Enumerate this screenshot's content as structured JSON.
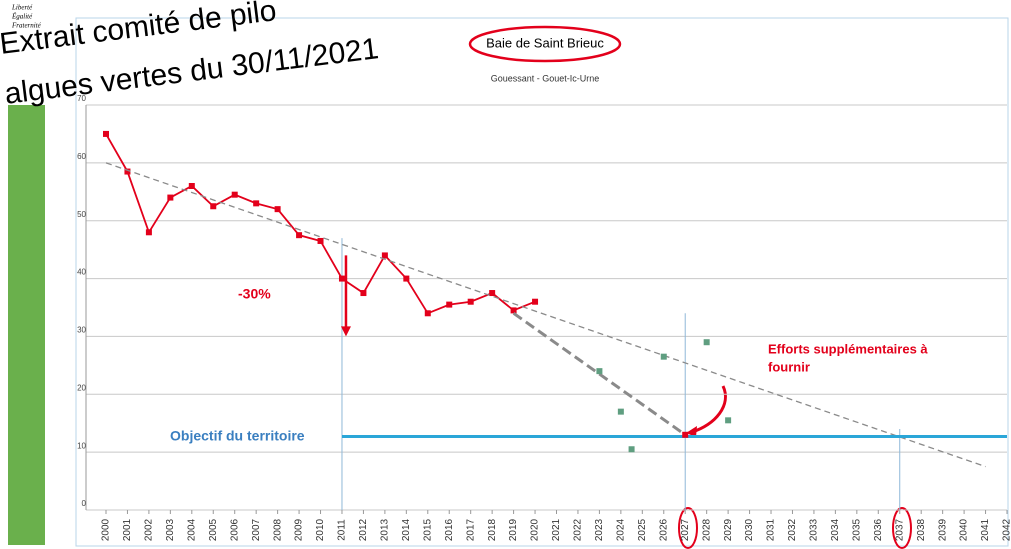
{
  "header": {
    "logo": [
      "Liberté",
      "Égalité",
      "Fraternité"
    ],
    "lines": [
      "Extrait comité de pilo",
      "algues vertes du 30/11/2021"
    ]
  },
  "chart_data": {
    "type": "line",
    "title": "Baie de Saint Brieuc",
    "subtitle": "Gouessant - Gouet-Ic-Urne",
    "xlim": [
      2000,
      2042
    ],
    "xticks": [
      2000,
      2001,
      2002,
      2003,
      2004,
      2005,
      2006,
      2007,
      2008,
      2009,
      2010,
      2011,
      2012,
      2013,
      2014,
      2015,
      2016,
      2017,
      2018,
      2019,
      2020,
      2021,
      2022,
      2023,
      2024,
      2025,
      2026,
      2027,
      2028,
      2029,
      2030,
      2031,
      2032,
      2033,
      2034,
      2035,
      2036,
      2037,
      2038,
      2039,
      2040,
      2041,
      2042
    ],
    "ylim": [
      0,
      70
    ],
    "yticks": [
      0,
      10,
      20,
      30,
      40,
      50,
      60,
      70
    ],
    "grid": true,
    "series": [
      {
        "style": "line-markers",
        "color": "#e3001b",
        "x": [
          2000,
          2001,
          2002,
          2003,
          2004,
          2005,
          2006,
          2007,
          2008,
          2009,
          2010,
          2011,
          2012,
          2013,
          2014,
          2015,
          2016,
          2017,
          2018,
          2019,
          2020
        ],
        "values": [
          65,
          58.5,
          48,
          54,
          56,
          52.5,
          54.5,
          53,
          52,
          47.5,
          46.5,
          40,
          37.5,
          44,
          40,
          34,
          35.5,
          36,
          37.5,
          34.5,
          36
        ]
      },
      {
        "style": "dashed",
        "color": "#8a8a8a",
        "x": [
          2000,
          2041
        ],
        "values": [
          60,
          7.5
        ]
      },
      {
        "style": "dashed-thick",
        "color": "#8a8a8a",
        "x": [
          2019,
          2027
        ],
        "values": [
          34,
          13
        ]
      },
      {
        "style": "scatter",
        "color": "#5f9e80",
        "x": [
          2023,
          2024,
          2024.5,
          2026,
          2028,
          2029
        ],
        "values": [
          24,
          17,
          10.5,
          26.5,
          29,
          15.5
        ]
      },
      {
        "style": "line",
        "color": "#2aa6d8",
        "x": [
          2011,
          2042
        ],
        "values": [
          12.7,
          12.7
        ]
      },
      {
        "style": "scatter",
        "color": "#e3001b",
        "x": [
          2027
        ],
        "values": [
          13
        ]
      }
    ],
    "reference_lines": [
      {
        "x": 2011,
        "top": 47
      },
      {
        "x": 2027,
        "top": 34
      },
      {
        "x": 2037,
        "top": 14
      }
    ],
    "arrow": {
      "x": 2011,
      "from": 44,
      "to": 30
    },
    "annotations": {
      "reduction": "-30%",
      "objective": "Objectif du territoire",
      "effort": [
        "Efforts supplémentaires à",
        "fournir"
      ]
    }
  }
}
